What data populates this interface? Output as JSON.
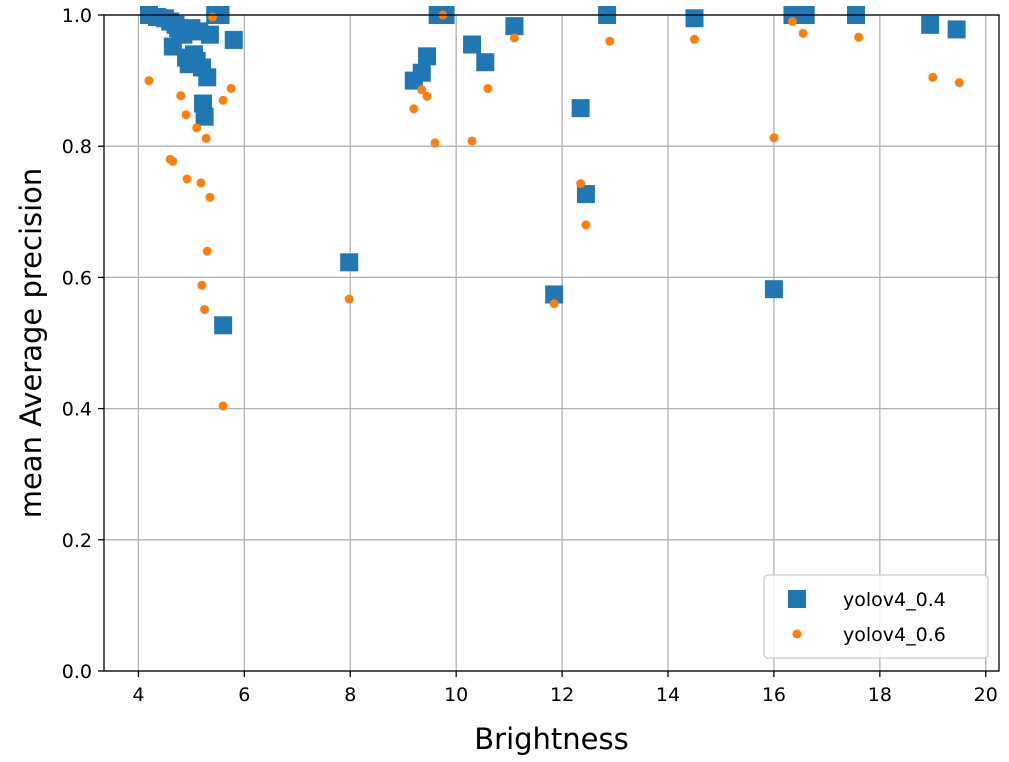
{
  "chart_data": {
    "type": "scatter",
    "title": "",
    "xlabel": "Brightness",
    "ylabel": "mean Average precision",
    "xlim": [
      3.35,
      20.25
    ],
    "ylim": [
      0.0,
      1.0
    ],
    "xticks": [
      "4",
      "6",
      "8",
      "10",
      "12",
      "14",
      "16",
      "18",
      "20"
    ],
    "yticks": [
      "0.0",
      "0.2",
      "0.4",
      "0.6",
      "0.8",
      "1.0"
    ],
    "grid": true,
    "legend_position": "lower-right",
    "series": [
      {
        "name": "yolov4_0.4",
        "marker": "square",
        "color": "#1f77b4",
        "points": [
          [
            4.2,
            1.0
          ],
          [
            4.35,
            0.997
          ],
          [
            4.5,
            0.995
          ],
          [
            4.6,
            0.99
          ],
          [
            4.65,
            0.952
          ],
          [
            4.7,
            0.985
          ],
          [
            4.75,
            0.98
          ],
          [
            4.8,
            0.975
          ],
          [
            4.85,
            0.97
          ],
          [
            4.9,
            0.935
          ],
          [
            4.95,
            0.925
          ],
          [
            5.0,
            0.98
          ],
          [
            5.05,
            0.94
          ],
          [
            5.1,
            0.93
          ],
          [
            5.15,
            0.975
          ],
          [
            5.2,
            0.92
          ],
          [
            5.22,
            0.865
          ],
          [
            5.25,
            0.845
          ],
          [
            5.3,
            0.905
          ],
          [
            5.35,
            0.97
          ],
          [
            5.45,
            1.0
          ],
          [
            5.55,
            1.0
          ],
          [
            5.6,
            0.527
          ],
          [
            5.8,
            0.962
          ],
          [
            7.98,
            0.623
          ],
          [
            9.2,
            0.9
          ],
          [
            9.35,
            0.912
          ],
          [
            9.45,
            0.937
          ],
          [
            9.65,
            1.0
          ],
          [
            9.8,
            1.0
          ],
          [
            10.3,
            0.955
          ],
          [
            10.55,
            0.928
          ],
          [
            11.1,
            0.983
          ],
          [
            11.85,
            0.574
          ],
          [
            12.35,
            0.858
          ],
          [
            12.45,
            0.727
          ],
          [
            12.85,
            1.0
          ],
          [
            14.5,
            0.995
          ],
          [
            16.0,
            0.582
          ],
          [
            16.35,
            1.0
          ],
          [
            16.6,
            1.0
          ],
          [
            17.55,
            1.0
          ],
          [
            18.95,
            0.985
          ],
          [
            19.45,
            0.978
          ]
        ]
      },
      {
        "name": "yolov4_0.6",
        "marker": "circle",
        "color": "#ff7f0e",
        "points": [
          [
            4.2,
            0.9
          ],
          [
            4.6,
            0.78
          ],
          [
            4.65,
            0.777
          ],
          [
            4.8,
            0.877
          ],
          [
            4.9,
            0.848
          ],
          [
            4.92,
            0.75
          ],
          [
            5.1,
            0.828
          ],
          [
            5.18,
            0.744
          ],
          [
            5.2,
            0.588
          ],
          [
            5.25,
            0.551
          ],
          [
            5.28,
            0.812
          ],
          [
            5.3,
            0.64
          ],
          [
            5.35,
            0.722
          ],
          [
            5.4,
            0.997
          ],
          [
            5.6,
            0.404
          ],
          [
            5.6,
            0.87
          ],
          [
            5.75,
            0.888
          ],
          [
            7.98,
            0.567
          ],
          [
            9.2,
            0.857
          ],
          [
            9.35,
            0.886
          ],
          [
            9.45,
            0.876
          ],
          [
            9.6,
            0.805
          ],
          [
            9.75,
            1.0
          ],
          [
            10.3,
            0.808
          ],
          [
            10.6,
            0.888
          ],
          [
            11.1,
            0.965
          ],
          [
            11.85,
            0.56
          ],
          [
            12.35,
            0.743
          ],
          [
            12.45,
            0.68
          ],
          [
            12.9,
            0.96
          ],
          [
            14.5,
            0.963
          ],
          [
            16.0,
            0.813
          ],
          [
            16.35,
            0.99
          ],
          [
            16.55,
            0.972
          ],
          [
            17.6,
            0.966
          ],
          [
            19.0,
            0.905
          ],
          [
            19.5,
            0.897
          ]
        ]
      }
    ]
  }
}
